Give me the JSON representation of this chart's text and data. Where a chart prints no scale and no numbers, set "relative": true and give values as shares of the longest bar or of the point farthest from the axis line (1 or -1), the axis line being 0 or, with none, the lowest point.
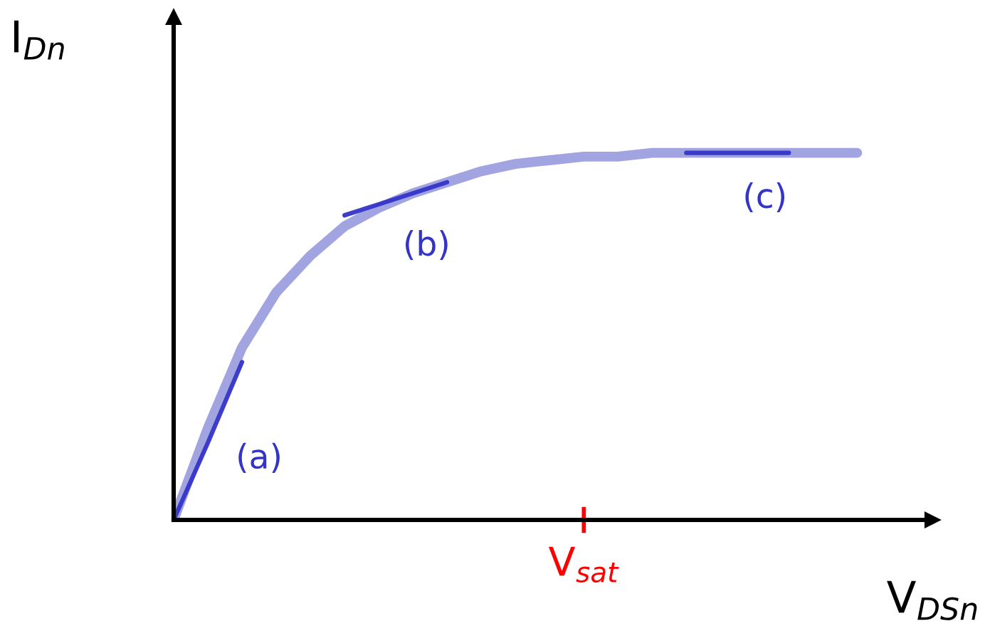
{
  "chart_data": {
    "type": "line",
    "relative": true,
    "xlabel": "V$_{DSn}$",
    "ylabel": "I$_{Dn}$",
    "categories": [
      null,
      null,
      null,
      null,
      null,
      null,
      null,
      null,
      null,
      null,
      null,
      null,
      null,
      null,
      null,
      null,
      null,
      null,
      null,
      null,
      null
    ],
    "annotations": [
      "V$_{sat}$"
    ],
    "series": [
      {
        "color": "#9d9fe0",
        "values": [
          0,
          0.25,
          0.47,
          0.62,
          0.72,
          0.8,
          0.85,
          0.89,
          0.92,
          0.95,
          0.97,
          0.98,
          0.99,
          0.99,
          1,
          1,
          1,
          1,
          1,
          1,
          1
        ]
      },
      {
        "name": "(a)",
        "color": "#3434c8",
        "values": [
          0,
          0.21,
          0.43,
          null,
          null,
          null,
          null,
          null,
          null,
          null,
          null,
          null,
          null,
          null,
          null,
          null,
          null,
          null,
          null,
          null,
          null
        ]
      },
      {
        "name": "(b)",
        "color": "#3434c8",
        "values": [
          null,
          null,
          null,
          null,
          null,
          0.83,
          0.86,
          0.89,
          0.92,
          null,
          null,
          null,
          null,
          null,
          null,
          null,
          null,
          null,
          null,
          null,
          null
        ]
      },
      {
        "name": "(c)",
        "color": "#3434c8",
        "values": [
          null,
          null,
          null,
          null,
          null,
          null,
          null,
          null,
          null,
          null,
          null,
          null,
          null,
          null,
          null,
          1,
          1,
          1,
          1,
          null,
          null
        ]
      }
    ]
  }
}
